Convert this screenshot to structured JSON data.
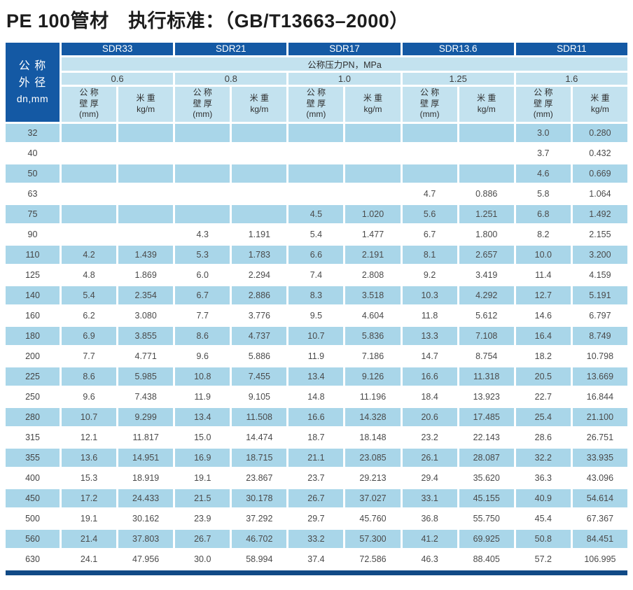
{
  "title": "PE 100管材　执行标准：（GB/T13663–2000）",
  "colors": {
    "header_dark_blue": "#1459a4",
    "header_light_blue": "#c3e2ef",
    "row_light_blue": "#a9d6e9",
    "bottom_bar_navy": "#114a86"
  },
  "table": {
    "corner_header": {
      "line1": "公 称",
      "line2": "外 径",
      "line3": "dn,mm"
    },
    "pressure_band_label": "公称压力PN，MPa",
    "sdr_groups": [
      {
        "sdr": "SDR33",
        "pn": "0.6"
      },
      {
        "sdr": "SDR21",
        "pn": "0.8"
      },
      {
        "sdr": "SDR17",
        "pn": "1.0"
      },
      {
        "sdr": "SDR13.6",
        "pn": "1.25"
      },
      {
        "sdr": "SDR11",
        "pn": "1.6"
      }
    ],
    "sub_headers": {
      "wall": "公 称\n壁 厚\n(mm)",
      "weight": "米 重\nkg/m"
    },
    "rows": [
      {
        "dn": "32",
        "values": [
          "",
          "",
          "",
          "",
          "",
          "",
          "",
          "",
          "3.0",
          "0.280"
        ]
      },
      {
        "dn": "40",
        "values": [
          "",
          "",
          "",
          "",
          "",
          "",
          "",
          "",
          "3.7",
          "0.432"
        ]
      },
      {
        "dn": "50",
        "values": [
          "",
          "",
          "",
          "",
          "",
          "",
          "",
          "",
          "4.6",
          "0.669"
        ]
      },
      {
        "dn": "63",
        "values": [
          "",
          "",
          "",
          "",
          "",
          "",
          "4.7",
          "0.886",
          "5.8",
          "1.064"
        ]
      },
      {
        "dn": "75",
        "values": [
          "",
          "",
          "",
          "",
          "4.5",
          "1.020",
          "5.6",
          "1.251",
          "6.8",
          "1.492"
        ]
      },
      {
        "dn": "90",
        "values": [
          "",
          "",
          "4.3",
          "1.191",
          "5.4",
          "1.477",
          "6.7",
          "1.800",
          "8.2",
          "2.155"
        ]
      },
      {
        "dn": "110",
        "values": [
          "4.2",
          "1.439",
          "5.3",
          "1.783",
          "6.6",
          "2.191",
          "8.1",
          "2.657",
          "10.0",
          "3.200"
        ]
      },
      {
        "dn": "125",
        "values": [
          "4.8",
          "1.869",
          "6.0",
          "2.294",
          "7.4",
          "2.808",
          "9.2",
          "3.419",
          "11.4",
          "4.159"
        ]
      },
      {
        "dn": "140",
        "values": [
          "5.4",
          "2.354",
          "6.7",
          "2.886",
          "8.3",
          "3.518",
          "10.3",
          "4.292",
          "12.7",
          "5.191"
        ]
      },
      {
        "dn": "160",
        "values": [
          "6.2",
          "3.080",
          "7.7",
          "3.776",
          "9.5",
          "4.604",
          "11.8",
          "5.612",
          "14.6",
          "6.797"
        ]
      },
      {
        "dn": "180",
        "values": [
          "6.9",
          "3.855",
          "8.6",
          "4.737",
          "10.7",
          "5.836",
          "13.3",
          "7.108",
          "16.4",
          "8.749"
        ]
      },
      {
        "dn": "200",
        "values": [
          "7.7",
          "4.771",
          "9.6",
          "5.886",
          "11.9",
          "7.186",
          "14.7",
          "8.754",
          "18.2",
          "10.798"
        ]
      },
      {
        "dn": "225",
        "values": [
          "8.6",
          "5.985",
          "10.8",
          "7.455",
          "13.4",
          "9.126",
          "16.6",
          "11.318",
          "20.5",
          "13.669"
        ]
      },
      {
        "dn": "250",
        "values": [
          "9.6",
          "7.438",
          "11.9",
          "9.105",
          "14.8",
          "11.196",
          "18.4",
          "13.923",
          "22.7",
          "16.844"
        ]
      },
      {
        "dn": "280",
        "values": [
          "10.7",
          "9.299",
          "13.4",
          "11.508",
          "16.6",
          "14.328",
          "20.6",
          "17.485",
          "25.4",
          "21.100"
        ]
      },
      {
        "dn": "315",
        "values": [
          "12.1",
          "11.817",
          "15.0",
          "14.474",
          "18.7",
          "18.148",
          "23.2",
          "22.143",
          "28.6",
          "26.751"
        ]
      },
      {
        "dn": "355",
        "values": [
          "13.6",
          "14.951",
          "16.9",
          "18.715",
          "21.1",
          "23.085",
          "26.1",
          "28.087",
          "32.2",
          "33.935"
        ]
      },
      {
        "dn": "400",
        "values": [
          "15.3",
          "18.919",
          "19.1",
          "23.867",
          "23.7",
          "29.213",
          "29.4",
          "35.620",
          "36.3",
          "43.096"
        ]
      },
      {
        "dn": "450",
        "values": [
          "17.2",
          "24.433",
          "21.5",
          "30.178",
          "26.7",
          "37.027",
          "33.1",
          "45.155",
          "40.9",
          "54.614"
        ]
      },
      {
        "dn": "500",
        "values": [
          "19.1",
          "30.162",
          "23.9",
          "37.292",
          "29.7",
          "45.760",
          "36.8",
          "55.750",
          "45.4",
          "67.367"
        ]
      },
      {
        "dn": "560",
        "values": [
          "21.4",
          "37.803",
          "26.7",
          "46.702",
          "33.2",
          "57.300",
          "41.2",
          "69.925",
          "50.8",
          "84.451"
        ]
      },
      {
        "dn": "630",
        "values": [
          "24.1",
          "47.956",
          "30.0",
          "58.994",
          "37.4",
          "72.586",
          "46.3",
          "88.405",
          "57.2",
          "106.995"
        ]
      }
    ]
  }
}
